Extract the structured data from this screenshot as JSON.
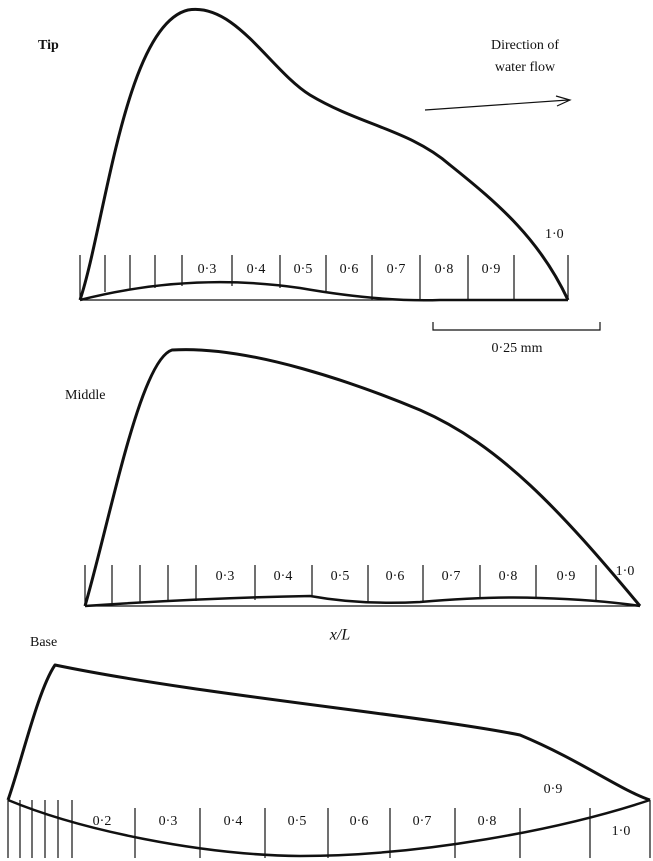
{
  "panels": [
    {
      "label": "Tip",
      "stations": [
        "0·3",
        "0·4",
        "0·5",
        "0·6",
        "0·7",
        "0·8",
        "0·9"
      ],
      "end_label": "1·0"
    },
    {
      "label": "Middle",
      "stations": [
        "0·3",
        "0·4",
        "0·5",
        "0·6",
        "0·7",
        "0·8",
        "0·9"
      ],
      "end_label": "1·0"
    },
    {
      "label": "Base",
      "stations": [
        "0·2",
        "0·3",
        "0·4",
        "0·5",
        "0·6",
        "0·7",
        "0·8",
        "0·9",
        "1·0"
      ]
    }
  ],
  "flow_label": [
    "Direction of",
    "water flow"
  ],
  "scale_label": "0·25 mm",
  "axis_label": "x/L"
}
